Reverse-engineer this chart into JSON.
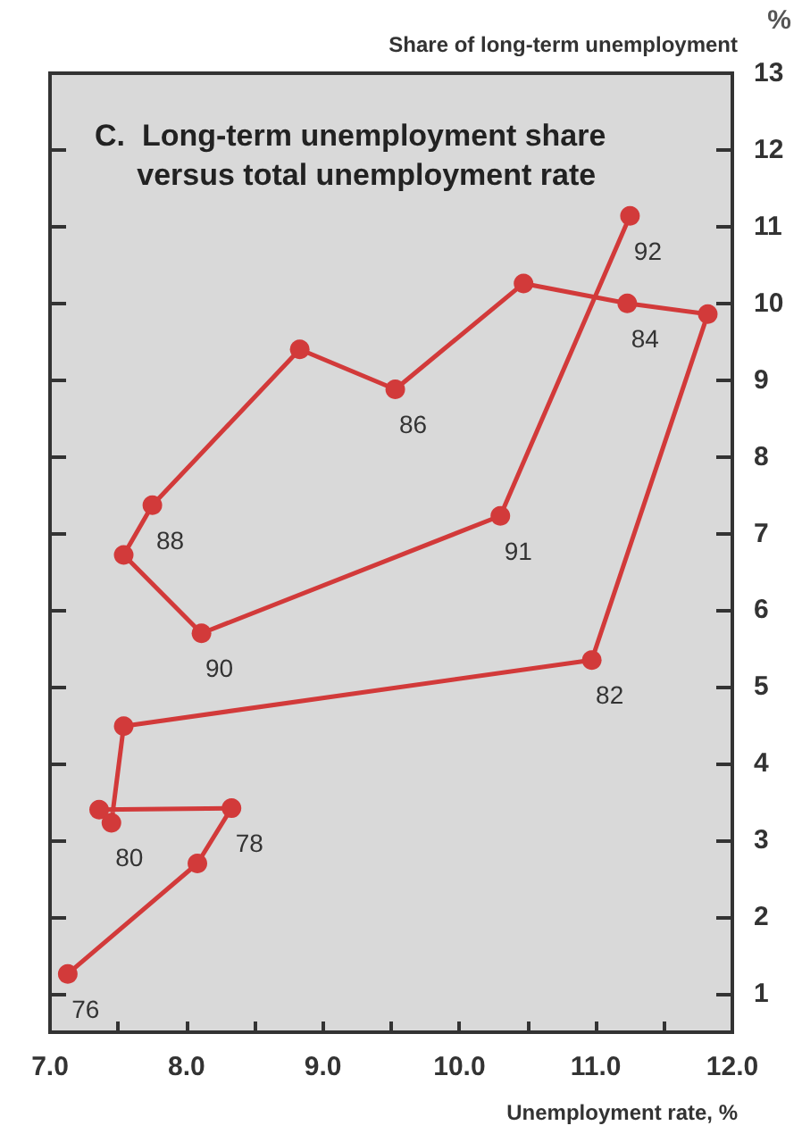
{
  "chart_data": {
    "type": "line",
    "title": "C.  Long-term unemployment share\n     versus total unemployment rate",
    "xlabel": "Unemployment rate, %",
    "ylabel": "Share of long-term unemployment",
    "x": [
      7.13,
      8.08,
      8.33,
      7.36,
      7.45,
      7.54,
      10.97,
      11.82,
      11.23,
      10.47,
      9.53,
      8.83,
      7.75,
      7.54,
      8.11,
      10.3,
      11.25
    ],
    "series": [
      {
        "color": "#d23a3a",
        "values": [
          1.26,
          2.7,
          3.42,
          3.4,
          3.23,
          4.49,
          5.35,
          9.86,
          10.0,
          10.26,
          8.88,
          9.4,
          7.37,
          6.72,
          5.7,
          7.23,
          11.14
        ]
      }
    ],
    "marker": "circle",
    "line_style": "solid",
    "grid": false,
    "xlim": [
      7,
      12
    ],
    "ylim": [
      0.5,
      13
    ],
    "xticks": [
      {
        "value": 7,
        "label": "7.0"
      },
      {
        "value": 7.5,
        "label": null
      },
      {
        "value": 8,
        "label": "8.0"
      },
      {
        "value": 8.5,
        "label": null
      },
      {
        "value": 9,
        "label": "9.0"
      },
      {
        "value": 9.5,
        "label": null
      },
      {
        "value": 10,
        "label": "10.0"
      },
      {
        "value": 10.5,
        "label": null
      },
      {
        "value": 11,
        "label": "11.0"
      },
      {
        "value": 11.5,
        "label": null
      },
      {
        "value": 12,
        "label": "12.0"
      }
    ],
    "yticks": [
      1,
      2,
      3,
      4,
      5,
      6,
      7,
      8,
      9,
      10,
      11,
      12,
      13
    ],
    "annotations": [
      "%",
      {
        "text": "76",
        "x": 7.13,
        "y": 1.26
      },
      {
        "text": "78",
        "x": 8.33,
        "y": 3.42
      },
      {
        "text": "80",
        "x": 7.45,
        "y": 3.23
      },
      {
        "text": "82",
        "x": 10.97,
        "y": 5.35
      },
      {
        "text": "84",
        "x": 11.23,
        "y": 10.0
      },
      {
        "text": "86",
        "x": 9.53,
        "y": 8.88
      },
      {
        "text": "88",
        "x": 7.75,
        "y": 7.37
      },
      {
        "text": "90",
        "x": 8.11,
        "y": 5.7
      },
      {
        "text": "91",
        "x": 10.3,
        "y": 7.23
      },
      {
        "text": "92",
        "x": 11.25,
        "y": 11.14
      }
    ]
  }
}
